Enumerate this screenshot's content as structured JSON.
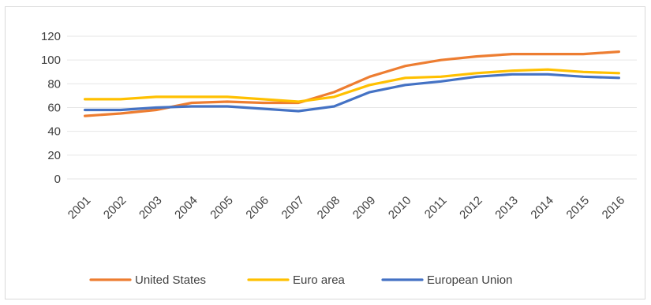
{
  "chart_data": {
    "type": "line",
    "title": "",
    "xlabel": "",
    "ylabel": "",
    "x": [
      "2001",
      "2002",
      "2003",
      "2004",
      "2005",
      "2006",
      "2007",
      "2008",
      "2009",
      "2010",
      "2011",
      "2012",
      "2013",
      "2014",
      "2015",
      "2016"
    ],
    "ylim": [
      0,
      120
    ],
    "yticks": [
      "0",
      "20",
      "40",
      "60",
      "80",
      "100",
      "120"
    ],
    "grid": true,
    "legend_position": "bottom",
    "series": [
      {
        "name": "United States",
        "color": "#ed7d31",
        "values": [
          53,
          55,
          58,
          64,
          65,
          64,
          64,
          73,
          86,
          95,
          100,
          103,
          105,
          105,
          105,
          107
        ]
      },
      {
        "name": "Euro area",
        "color": "#ffc000",
        "values": [
          67,
          67,
          69,
          69,
          69,
          67,
          65,
          69,
          79,
          85,
          86,
          89,
          91,
          92,
          90,
          89
        ]
      },
      {
        "name": "European Union",
        "color": "#4472c4",
        "values": [
          58,
          58,
          60,
          61,
          61,
          59,
          57,
          61,
          73,
          79,
          82,
          86,
          88,
          88,
          86,
          85
        ]
      }
    ]
  }
}
